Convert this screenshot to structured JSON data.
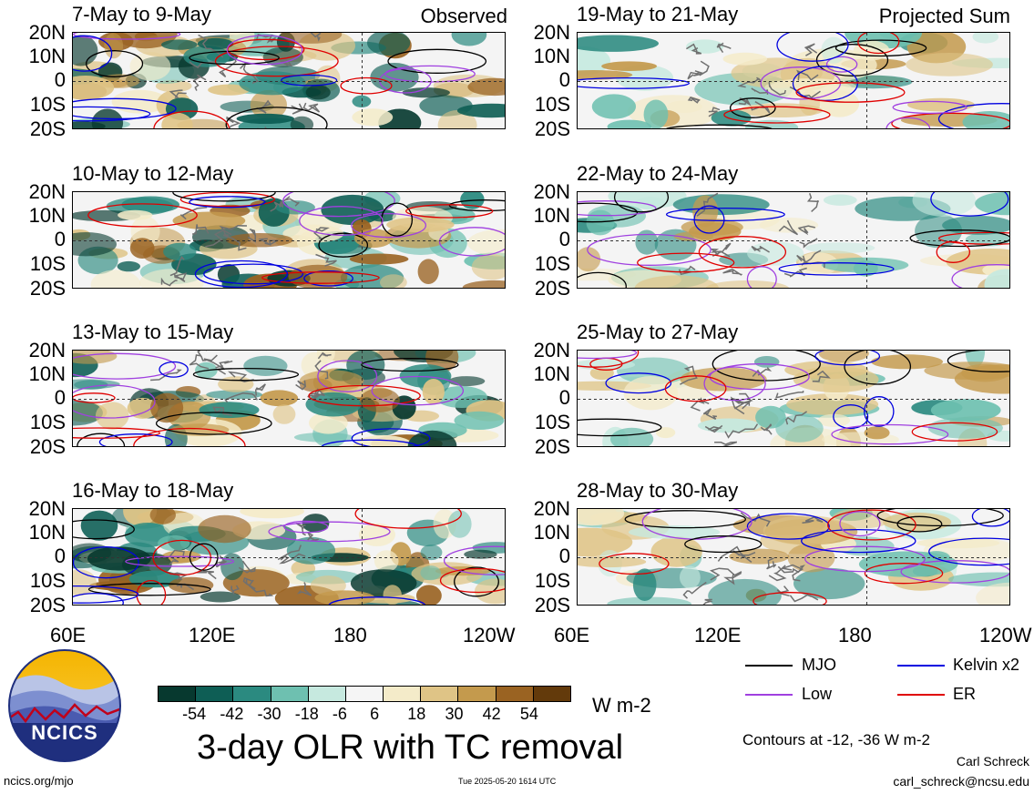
{
  "panels": [
    {
      "id": "p1",
      "title": "7-May to 9-May",
      "tag": "Observed",
      "col": 0,
      "row": 0
    },
    {
      "id": "p2",
      "title": "10-May to 12-May",
      "tag": "",
      "col": 0,
      "row": 1
    },
    {
      "id": "p3",
      "title": "13-May to 15-May",
      "tag": "",
      "col": 0,
      "row": 2
    },
    {
      "id": "p4",
      "title": "16-May to 18-May",
      "tag": "",
      "col": 0,
      "row": 3
    },
    {
      "id": "p5",
      "title": "19-May to 21-May",
      "tag": "Projected Sum",
      "col": 1,
      "row": 0
    },
    {
      "id": "p6",
      "title": "22-May to 24-May",
      "tag": "",
      "col": 1,
      "row": 1
    },
    {
      "id": "p7",
      "title": "25-May to 27-May",
      "tag": "",
      "col": 1,
      "row": 2
    },
    {
      "id": "p8",
      "title": "28-May to 30-May",
      "tag": "",
      "col": 1,
      "row": 3
    }
  ],
  "lat_labels": [
    "20N",
    "10N",
    "0",
    "10S",
    "20S"
  ],
  "lon_labels": [
    "60E",
    "120E",
    "180",
    "120W"
  ],
  "colorbar": {
    "colors": [
      "#07392f",
      "#0e5e55",
      "#2b8a80",
      "#6ec0b0",
      "#c6e9df",
      "#f5f5f5",
      "#f4ebc9",
      "#dfc486",
      "#c49a4d",
      "#9a6322",
      "#633a0b"
    ],
    "labels": [
      "-54",
      "-42",
      "-30",
      "-18",
      "-6",
      "6",
      "18",
      "30",
      "42",
      "54"
    ],
    "unit": "W m-2"
  },
  "main_title": "3-day OLR with TC removal",
  "legend": [
    {
      "label": "MJO",
      "color": "#000000"
    },
    {
      "label": "Kelvin x2",
      "color": "#0000e0"
    },
    {
      "label": "Low",
      "color": "#a040e0"
    },
    {
      "label": "ER",
      "color": "#e00000"
    }
  ],
  "contours_note": "Contours at -12, -36 W m-2",
  "author": "Carl Schreck",
  "email": "carl_schreck@ncsu.edu",
  "url": "ncics.org/mjo",
  "timestamp": "Tue 2025-05-20 1614 UTC",
  "logo_text": "NCICS"
}
